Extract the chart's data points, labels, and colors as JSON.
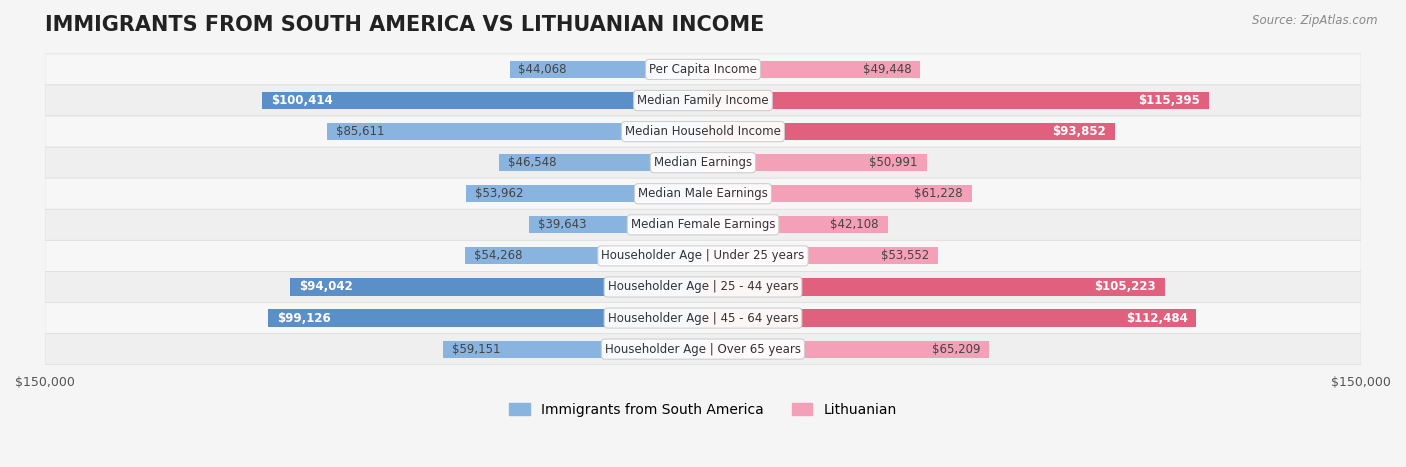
{
  "title": "IMMIGRANTS FROM SOUTH AMERICA VS LITHUANIAN INCOME",
  "source": "Source: ZipAtlas.com",
  "categories": [
    "Per Capita Income",
    "Median Family Income",
    "Median Household Income",
    "Median Earnings",
    "Median Male Earnings",
    "Median Female Earnings",
    "Householder Age | Under 25 years",
    "Householder Age | 25 - 44 years",
    "Householder Age | 45 - 64 years",
    "Householder Age | Over 65 years"
  ],
  "south_america_values": [
    44068,
    100414,
    85611,
    46548,
    53962,
    39643,
    54268,
    94042,
    99126,
    59151
  ],
  "lithuanian_values": [
    49448,
    115395,
    93852,
    50991,
    61228,
    42108,
    53552,
    105223,
    112484,
    65209
  ],
  "south_america_labels": [
    "$44,068",
    "$100,414",
    "$85,611",
    "$46,548",
    "$53,962",
    "$39,643",
    "$54,268",
    "$94,042",
    "$99,126",
    "$59,151"
  ],
  "lithuanian_labels": [
    "$49,448",
    "$115,395",
    "$93,852",
    "$50,991",
    "$61,228",
    "$42,108",
    "$53,552",
    "$105,223",
    "$112,484",
    "$65,209"
  ],
  "south_america_color": "#8ab4e0",
  "south_america_dark_color": "#5b8fc7",
  "lithuanian_color": "#f4a0b8",
  "lithuanian_dark_color": "#e0607e",
  "max_value": 150000,
  "background_color": "#f5f5f5",
  "row_bg_color": "#ffffff",
  "row_alt_bg_color": "#f0f0f0",
  "bar_height": 0.55,
  "title_fontsize": 15,
  "label_fontsize": 9,
  "legend_fontsize": 10,
  "axis_label_fontsize": 9
}
